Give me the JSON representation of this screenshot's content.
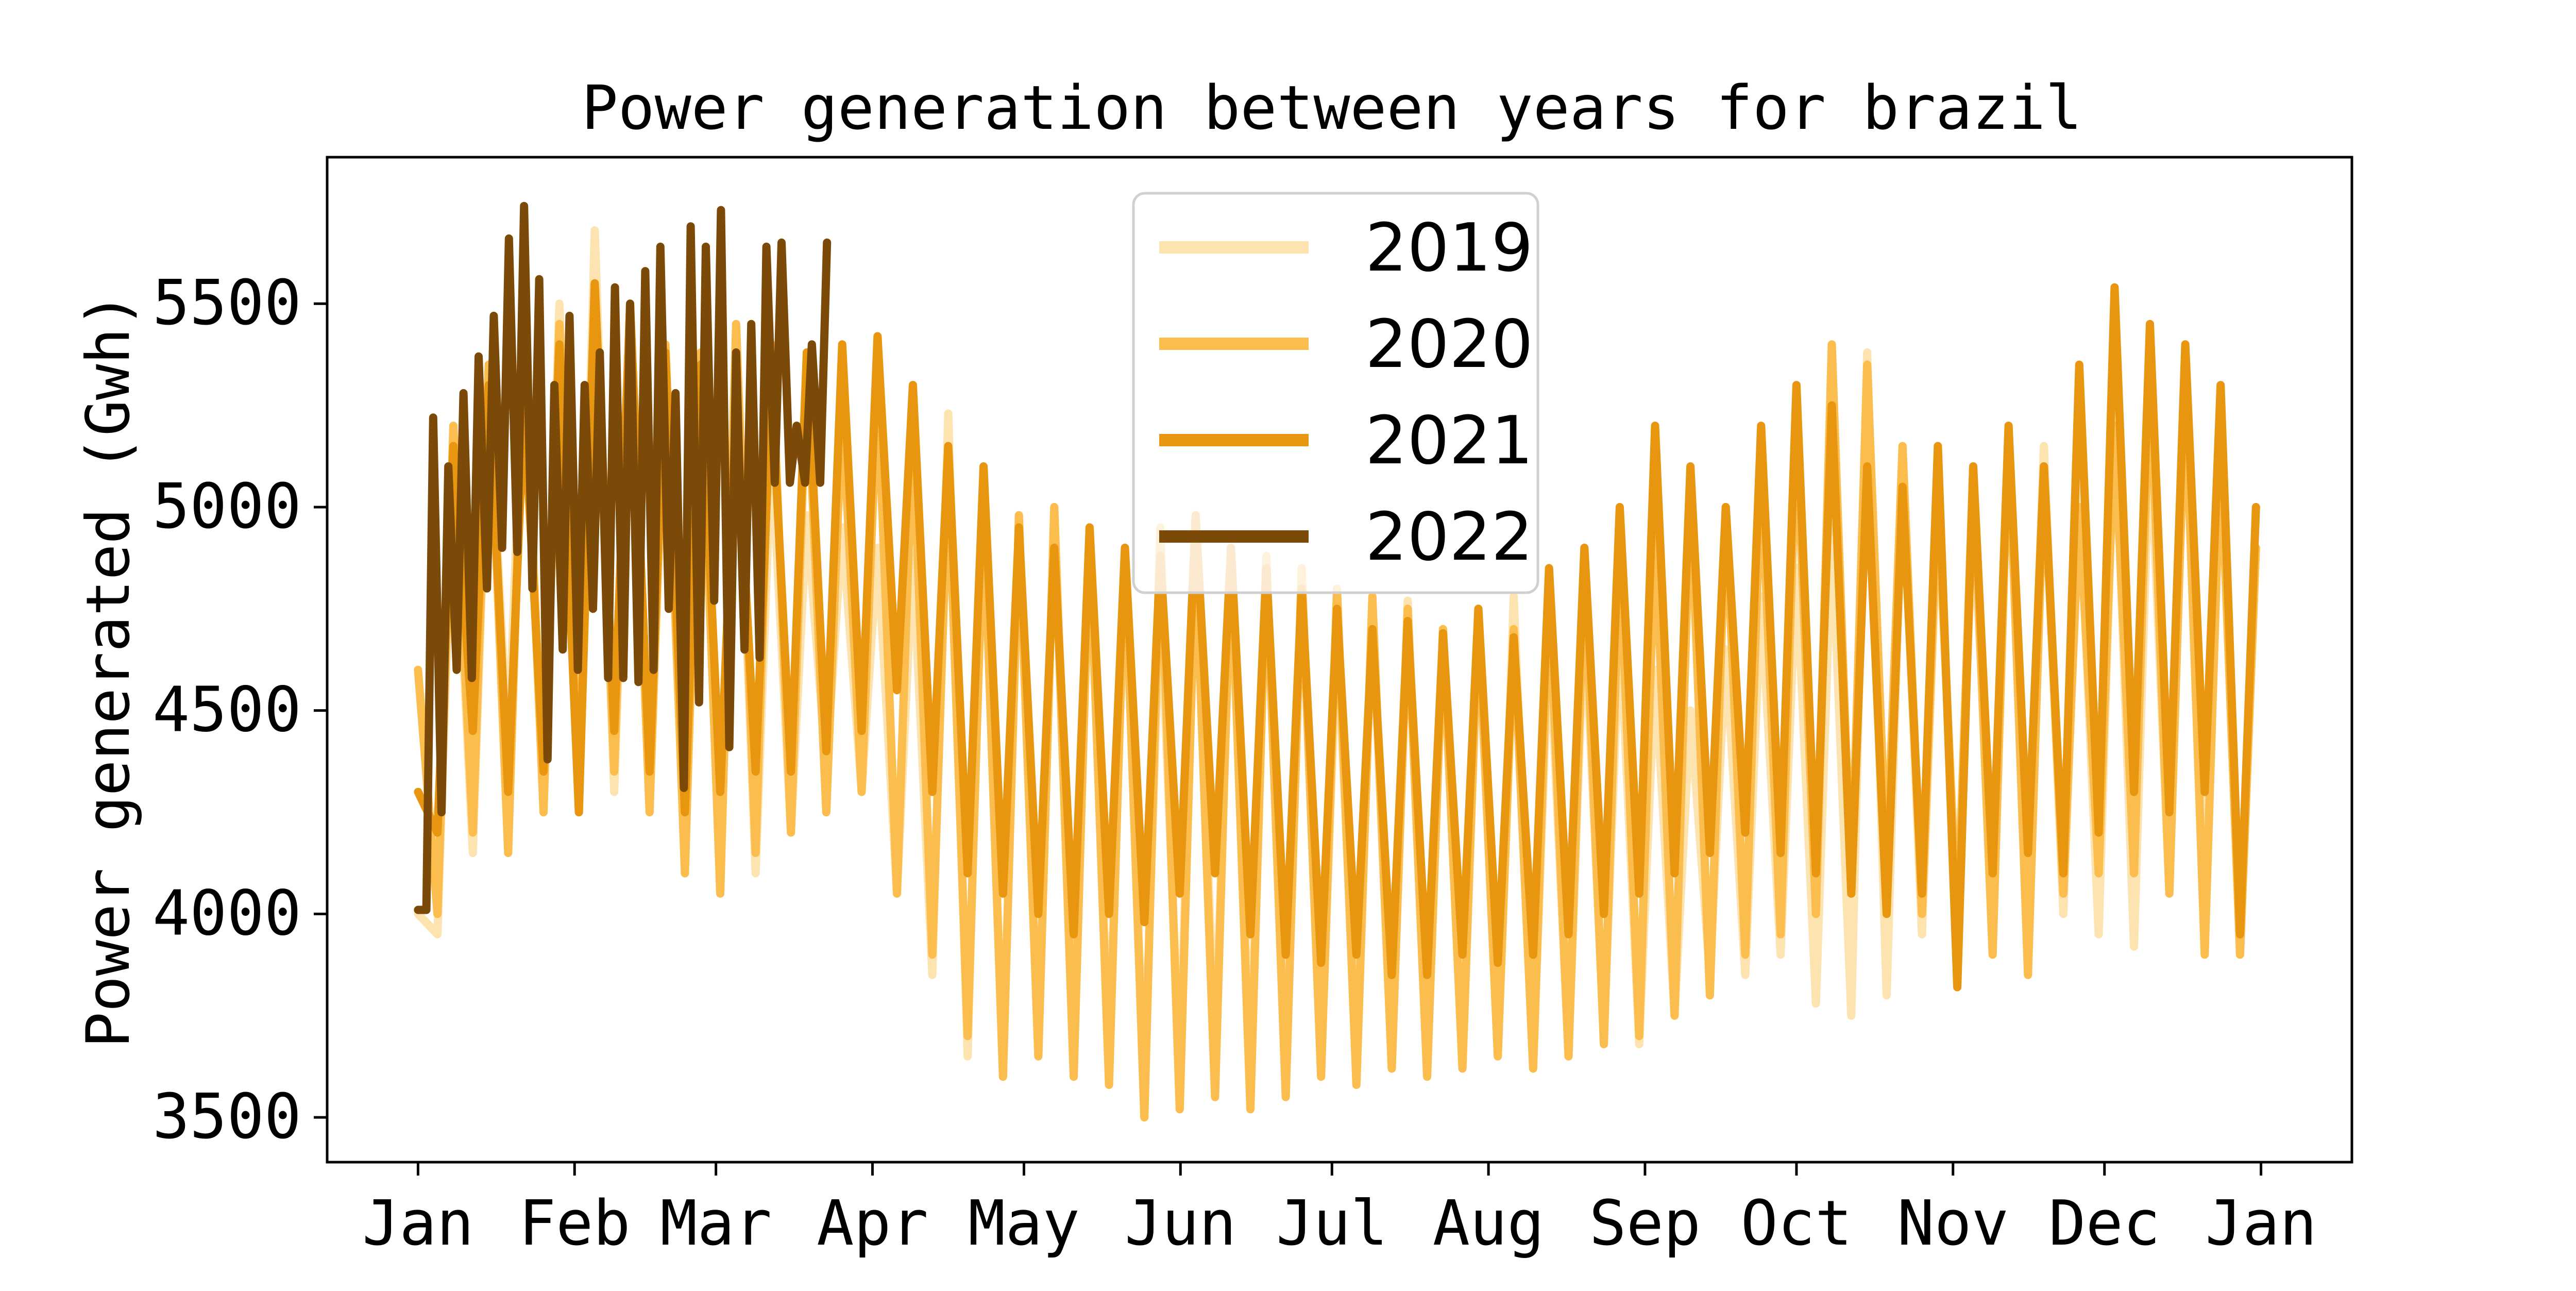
{
  "chart_data": {
    "type": "line",
    "title": "Power generation between years for brazil",
    "xlabel": "",
    "ylabel": "Power generated (Gwh)",
    "x_tick_labels": [
      "Jan",
      "Feb",
      "Mar",
      "Apr",
      "May",
      "Jun",
      "Jul",
      "Aug",
      "Sep",
      "Oct",
      "Nov",
      "Dec",
      "Jan"
    ],
    "x_unit": "day of year",
    "xlim": [
      -18,
      383
    ],
    "ylim": [
      3390,
      5860
    ],
    "y_ticks": [
      3500,
      4000,
      4500,
      5000,
      5500
    ],
    "legend_position": "top-center",
    "grid": false,
    "series": [
      {
        "name": "2019",
        "color": "#fde3b0",
        "x": [
          0,
          7,
          14,
          21,
          28,
          35,
          42,
          49,
          56,
          63,
          70,
          77,
          84,
          91,
          98,
          105,
          112,
          119,
          126,
          133,
          140,
          147,
          154,
          161,
          168,
          175,
          182,
          189,
          196,
          203,
          210,
          217,
          224,
          231,
          238,
          245,
          252,
          259,
          266,
          273,
          280,
          287,
          294,
          301,
          308,
          315,
          322,
          329,
          336,
          343,
          350,
          357,
          364
        ],
        "values": [
          4000,
          5150,
          5300,
          5420,
          5500,
          5680,
          5450,
          5300,
          5250,
          5380,
          5150,
          4980,
          4950,
          4900,
          4880,
          5230,
          5100,
          4950,
          5000,
          4900,
          4850,
          4800,
          4950,
          4850,
          4880,
          4830,
          4700,
          4750,
          4770,
          4700,
          4720,
          4780,
          4700,
          4750,
          4720,
          4600,
          4500,
          4650,
          4780,
          4850,
          4950,
          5380,
          5100,
          5000,
          4980,
          5180,
          5150,
          5050,
          5250,
          5200,
          5300,
          5150,
          4900
        ],
        "min_values": [
          3950,
          4150,
          4400,
          4300,
          4250,
          4300,
          4300,
          4150,
          4150,
          4100,
          4200,
          4350,
          4300,
          4050,
          3850,
          3650,
          3600,
          3650,
          3750,
          3650,
          3580,
          3600,
          3650,
          3620,
          3650,
          3620,
          3650,
          3620,
          3650,
          3620,
          3650,
          3620,
          3650,
          3700,
          3680,
          3750,
          3850,
          3850,
          3900,
          3780,
          3750,
          3800,
          3950,
          4000,
          4050,
          4100,
          4000,
          3950,
          3920,
          4050,
          4100,
          3900,
          4900
        ]
      },
      {
        "name": "2020",
        "color": "#fcbd4f",
        "x": [
          0,
          7,
          14,
          21,
          28,
          35,
          42,
          49,
          56,
          63,
          70,
          77,
          84,
          91,
          98,
          105,
          112,
          119,
          126,
          133,
          140,
          147,
          154,
          161,
          168,
          175,
          182,
          189,
          196,
          203,
          210,
          217,
          224,
          231,
          238,
          245,
          252,
          259,
          266,
          273,
          280,
          287,
          294,
          301,
          308,
          315,
          322,
          329,
          336,
          343,
          350,
          357,
          364
        ],
        "values": [
          4600,
          5200,
          5350,
          5400,
          5450,
          5550,
          5500,
          5400,
          5380,
          5450,
          5400,
          5350,
          5250,
          5300,
          5200,
          5100,
          5000,
          4980,
          5000,
          4950,
          4900,
          4950,
          4900,
          4900,
          4880,
          4850,
          4800,
          4780,
          4750,
          4700,
          4750,
          4700,
          4800,
          4850,
          4900,
          4950,
          5050,
          5000,
          5100,
          5200,
          5400,
          5350,
          5150,
          5050,
          5100,
          5200,
          5100,
          5000,
          5200,
          5350,
          5300,
          5150,
          4900
        ],
        "min_values": [
          4000,
          4200,
          4150,
          4250,
          4300,
          4350,
          4250,
          4100,
          4050,
          4150,
          4200,
          4250,
          4300,
          4050,
          3900,
          3700,
          3600,
          3650,
          3600,
          3580,
          3500,
          3520,
          3550,
          3520,
          3550,
          3600,
          3580,
          3620,
          3600,
          3620,
          3650,
          3620,
          3650,
          3680,
          3700,
          3750,
          3800,
          3900,
          3950,
          4000,
          4050,
          4100,
          4000,
          3950,
          3900,
          3850,
          4050,
          4100,
          4100,
          4050,
          3900,
          3900,
          4000
        ]
      },
      {
        "name": "2021",
        "color": "#e8950f",
        "x": [
          0,
          7,
          14,
          21,
          28,
          35,
          42,
          49,
          56,
          63,
          70,
          77,
          84,
          91,
          98,
          105,
          112,
          119,
          126,
          133,
          140,
          147,
          154,
          161,
          168,
          175,
          182,
          189,
          196,
          203,
          210,
          217,
          224,
          231,
          238,
          245,
          252,
          259,
          266,
          273,
          280,
          287,
          294,
          301,
          308,
          315,
          322,
          329,
          336,
          343,
          350,
          357,
          364
        ],
        "values": [
          4300,
          5150,
          5300,
          5250,
          5400,
          5550,
          5500,
          5380,
          5350,
          5250,
          5300,
          5380,
          5400,
          5420,
          5300,
          5150,
          5100,
          4950,
          4900,
          4950,
          4900,
          4880,
          4980,
          4900,
          4850,
          4800,
          4750,
          4700,
          4720,
          4690,
          4750,
          4680,
          4850,
          4900,
          5000,
          5200,
          5100,
          5000,
          5200,
          5300,
          5250,
          5100,
          5050,
          5150,
          5100,
          5200,
          5100,
          5350,
          5540,
          5450,
          5400,
          5300,
          5000
        ],
        "min_values": [
          4200,
          4450,
          4300,
          4350,
          4250,
          4450,
          4350,
          4250,
          4300,
          4350,
          4350,
          4400,
          4450,
          4550,
          4300,
          4100,
          4050,
          4000,
          3950,
          4000,
          3980,
          4050,
          4100,
          3950,
          3900,
          3880,
          3900,
          3850,
          3850,
          3900,
          3880,
          3900,
          3950,
          4000,
          4050,
          4100,
          4150,
          4200,
          4150,
          4100,
          4050,
          4000,
          4050,
          3820,
          4100,
          4150,
          4100,
          4200,
          4300,
          4250,
          4300,
          3950,
          4420
        ]
      },
      {
        "name": "2022",
        "color": "#7b4a08",
        "x": [
          0,
          3,
          6,
          9,
          12,
          15,
          18,
          21,
          24,
          27,
          30,
          33,
          36,
          39,
          42,
          45,
          48,
          51,
          54,
          57,
          60,
          63,
          66,
          69,
          72,
          75,
          78,
          81
        ],
        "values": [
          4010,
          5220,
          5100,
          5280,
          5370,
          5470,
          5660,
          5740,
          5560,
          5300,
          5470,
          5300,
          5380,
          5540,
          5500,
          5580,
          5640,
          5280,
          5690,
          5640,
          5730,
          5380,
          5450,
          5640,
          5650,
          5200,
          5400,
          5650
        ],
        "min_values": [
          4010,
          4250,
          4600,
          4580,
          4800,
          4900,
          4890,
          4800,
          4380,
          4650,
          4600,
          4750,
          4580,
          4580,
          4570,
          4600,
          4750,
          4310,
          4520,
          4770,
          4410,
          4650,
          4630,
          5060,
          5060,
          5060,
          5060,
          5060
        ]
      }
    ]
  }
}
